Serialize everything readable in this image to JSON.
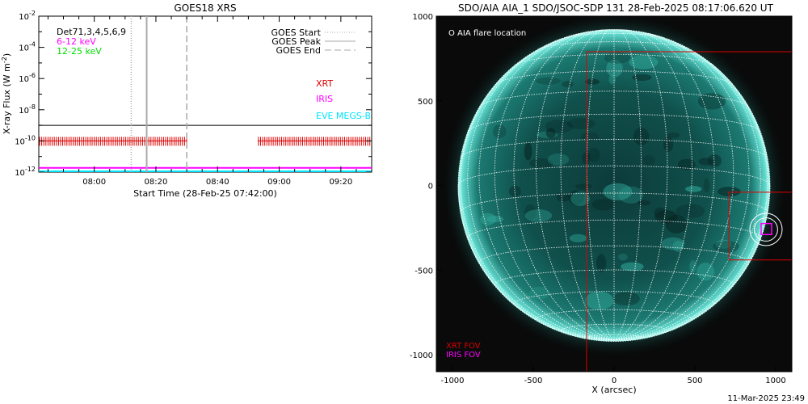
{
  "chart_data": [
    {
      "type": "line",
      "title": "GOES18 XRS",
      "xlabel": "Start Time (28-Feb-25 07:42:00)",
      "ylabel": "X-ray Flux (W m",
      "ylabel_sup": "-2",
      "ylabel_close": ")",
      "xlim": [
        "07:42",
        "09:30"
      ],
      "ylim": [
        1e-12,
        0.01
      ],
      "yscale": "log",
      "x_ticks": [
        "08:00",
        "08:20",
        "08:40",
        "09:00",
        "09:20"
      ],
      "y_ticks": [
        {
          "base": "10",
          "exp": "-2",
          "value": 0.01
        },
        {
          "base": "10",
          "exp": "-4",
          "value": 0.0001
        },
        {
          "base": "10",
          "exp": "-6",
          "value": 1e-06
        },
        {
          "base": "10",
          "exp": "-8",
          "value": 1e-08
        },
        {
          "base": "10",
          "exp": "-10",
          "value": 1e-10
        },
        {
          "base": "10",
          "exp": "-12",
          "value": 1e-12
        }
      ],
      "top_left_label": "Det71,3,4,5,6,9",
      "series": [
        {
          "name": "6-12 keV",
          "color": "#ff00ff",
          "x": [
            "07:42",
            "09:30"
          ],
          "y": [
            1.3e-12,
            1.3e-12
          ]
        },
        {
          "name": "12-25 keV",
          "color": "#00dd00",
          "x": [],
          "y": []
        }
      ],
      "background_level": {
        "color": "#000000",
        "y": 1e-09
      },
      "eve_level": {
        "color": "#00e5ff",
        "y": 1e-12
      },
      "event_lines": [
        {
          "name": "GOES Start",
          "style": "dotted",
          "color": "#aaaaaa",
          "time": "08:12"
        },
        {
          "name": "GOES Peak",
          "style": "solid",
          "color": "#aaaaaa",
          "time": "08:17"
        },
        {
          "name": "GOES End",
          "style": "dashed",
          "color": "#aaaaaa",
          "time": "08:30"
        }
      ],
      "instruments": [
        {
          "name": "XRT",
          "color": "#dd0000"
        },
        {
          "name": "IRIS",
          "color": "#ff00ff"
        },
        {
          "name": "EVE MEGS-B",
          "color": "#00e5ff"
        }
      ],
      "xrt_coverage": [
        [
          "07:42",
          "08:30"
        ],
        [
          "08:53",
          "09:30"
        ]
      ],
      "xrt_level": 1e-10
    },
    {
      "type": "heatmap",
      "title": "SDO/AIA AIA_1 SDO/JSOC-SDP 131 28-Feb-2025 08:17:06.620 UT",
      "xlabel": "X (arcsec)",
      "ylabel": "",
      "xlim": [
        -1100,
        1100
      ],
      "ylim": [
        -1100,
        1000
      ],
      "x_ticks": [
        "-1000",
        "-500",
        "0",
        "500",
        "1000"
      ],
      "y_ticks": [
        "1000",
        "500",
        "0",
        "-500",
        "-1000"
      ],
      "x_tick_values": [
        -1000,
        -500,
        0,
        500,
        1000
      ],
      "y_tick_values": [
        1000,
        500,
        0,
        -500,
        -1000
      ],
      "solar_radius": 965,
      "legend_top": "O AIA flare location",
      "flare_location": {
        "x": 940,
        "y": -260,
        "radius": 100
      },
      "xrt_fov": [
        {
          "x0": -170,
          "y0": -1100,
          "x1": 1100,
          "y1": 790
        },
        {
          "x0": 710,
          "y0": -440,
          "x1": 1100,
          "y1": -40
        }
      ],
      "iris_fov": {
        "x0": 910,
        "y0": -290,
        "x1": 975,
        "y1": -225
      },
      "fov_legend": [
        {
          "name": "XRT FOV",
          "color": "#dd0000"
        },
        {
          "name": "IRIS FOV",
          "color": "#ff00ff"
        }
      ]
    }
  ],
  "footer_timestamp": "11-Mar-2025 23:49"
}
